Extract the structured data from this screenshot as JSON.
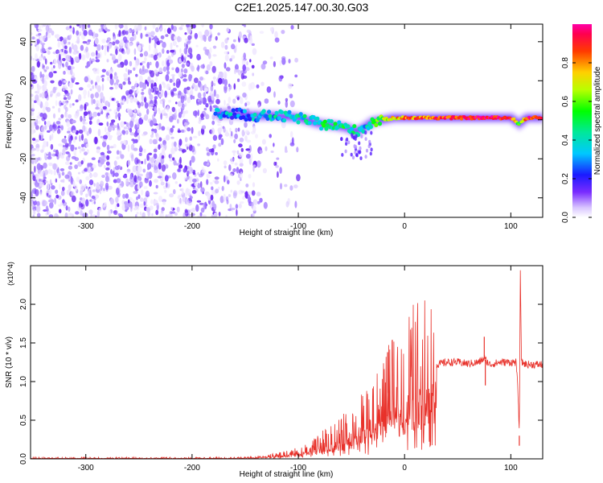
{
  "title": "C2E1.2025.147.00.30.G03",
  "chart_data": [
    {
      "type": "heatmap",
      "xlabel": "Height of straight line (km)",
      "ylabel": "Frequency (Hz)",
      "xlim": [
        -352,
        130
      ],
      "ylim": [
        -50,
        49
      ],
      "xticks": [
        -300,
        -200,
        -100,
        0,
        100
      ],
      "yticks": [
        -40,
        -20,
        0,
        20,
        40
      ],
      "colorbar": {
        "label": "Normalized spectral amplitude",
        "range": [
          0,
          1
        ],
        "ticks": [
          "0.0",
          "0.2",
          "0.4",
          "0.6",
          "0.8"
        ]
      },
      "noise_region_x": [
        -352,
        -140
      ],
      "ridge": {
        "x": [
          -178,
          -160,
          -140,
          -120,
          -100,
          -80,
          -65,
          -55,
          -45,
          -38,
          -30,
          -20,
          -10,
          0,
          20,
          40,
          60,
          80,
          100,
          108,
          115,
          130
        ],
        "y": [
          3,
          3,
          2,
          2,
          1,
          -2,
          -3,
          -4,
          -6,
          -4,
          -1,
          0,
          1,
          1,
          1,
          1,
          1,
          1,
          1,
          -2,
          1,
          1
        ],
        "amplitude": [
          0.3,
          0.3,
          0.32,
          0.35,
          0.4,
          0.45,
          0.45,
          0.45,
          0.4,
          0.35,
          0.5,
          0.6,
          0.7,
          0.8,
          0.85,
          0.9,
          0.92,
          0.95,
          0.95,
          0.5,
          0.9,
          0.95
        ]
      }
    },
    {
      "type": "line",
      "xlabel": "Height of straight line (km)",
      "ylabel": "SNR (10 * v/v)",
      "scale_label": "(x10^4)",
      "xlim": [
        -352,
        130
      ],
      "ylim": [
        0,
        2.5
      ],
      "xticks": [
        -300,
        -200,
        -100,
        0,
        100
      ],
      "yticks": [
        "0.0",
        "0.5",
        "1.0",
        "1.5",
        "2.0"
      ],
      "color": "#e8312a",
      "series": [
        {
          "x": [
            -352,
            -300,
            -250,
            -200,
            -160,
            -140,
            -120,
            -100,
            -90,
            -80,
            -70,
            -60,
            -50,
            -40,
            -30,
            -20,
            -15,
            -10,
            -5,
            0,
            10,
            20,
            30,
            40,
            50,
            60,
            70,
            75,
            80,
            90,
            100,
            105,
            107,
            108,
            109,
            110,
            115,
            130
          ],
          "y": [
            0.01,
            0.01,
            0.01,
            0.01,
            0.01,
            0.02,
            0.04,
            0.08,
            0.12,
            0.18,
            0.22,
            0.3,
            0.35,
            0.45,
            0.55,
            0.65,
            0.9,
            0.8,
            0.95,
            1.0,
            1.1,
            1.2,
            1.22,
            1.25,
            1.25,
            1.23,
            1.25,
            1.3,
            1.22,
            1.25,
            1.25,
            1.25,
            0.8,
            0.3,
            2.5,
            1.25,
            1.22,
            1.22
          ]
        }
      ],
      "spikes": [
        {
          "x": -16,
          "y": 1.38
        },
        {
          "x": 75,
          "y": 1.58
        },
        {
          "x": 76,
          "y": 0.95
        },
        {
          "x": 109,
          "y": 2.5
        },
        {
          "x": 108,
          "y": 0.17
        }
      ]
    }
  ]
}
